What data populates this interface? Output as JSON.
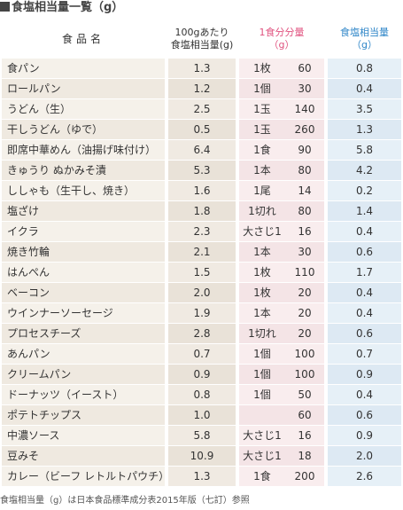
{
  "title": "食塩相当量一覧（g）",
  "headers": {
    "name": "食品名",
    "per100_line1": "100gあたり",
    "per100_line2": "食塩相当量(g)",
    "portion_line1": "1食分分量",
    "portion_line2": "（g）",
    "salt_line1": "食塩相当量",
    "salt_line2": "（g）"
  },
  "colors": {
    "portion_header": "#e0527f",
    "salt_header": "#2f86c8",
    "name_column": "#f5f1ea",
    "portion_column": "#f9edee",
    "salt_column": "#e6f0f7"
  },
  "rows": [
    {
      "name": "食パン",
      "per100": "1.3",
      "unit": "1枚",
      "grams": "60",
      "salt": "0.8"
    },
    {
      "name": "ロールパン",
      "per100": "1.2",
      "unit": "1個",
      "grams": "30",
      "salt": "0.4"
    },
    {
      "name": "うどん（生）",
      "per100": "2.5",
      "unit": "1玉",
      "grams": "140",
      "salt": "3.5"
    },
    {
      "name": "干しうどん（ゆで）",
      "per100": "0.5",
      "unit": "1玉",
      "grams": "260",
      "salt": "1.3"
    },
    {
      "name": "即席中華めん（油揚げ味付け）",
      "per100": "6.4",
      "unit": "1食",
      "grams": "90",
      "salt": "5.8"
    },
    {
      "name": "きゅうり ぬかみそ漬",
      "per100": "5.3",
      "unit": "1本",
      "grams": "80",
      "salt": "4.2"
    },
    {
      "name": "ししゃも（生干し、焼き）",
      "per100": "1.6",
      "unit": "1尾",
      "grams": "14",
      "salt": "0.2"
    },
    {
      "name": "塩ざけ",
      "per100": "1.8",
      "unit": "1切れ",
      "grams": "80",
      "salt": "1.4"
    },
    {
      "name": "イクラ",
      "per100": "2.3",
      "unit": "大さじ1",
      "grams": "16",
      "salt": "0.4"
    },
    {
      "name": "焼き竹輪",
      "per100": "2.1",
      "unit": "1本",
      "grams": "30",
      "salt": "0.6"
    },
    {
      "name": "はんぺん",
      "per100": "1.5",
      "unit": "1枚",
      "grams": "110",
      "salt": "1.7"
    },
    {
      "name": "ベーコン",
      "per100": "2.0",
      "unit": "1枚",
      "grams": "20",
      "salt": "0.4"
    },
    {
      "name": "ウインナーソーセージ",
      "per100": "1.9",
      "unit": "1本",
      "grams": "20",
      "salt": "0.4"
    },
    {
      "name": "プロセスチーズ",
      "per100": "2.8",
      "unit": "1切れ",
      "grams": "20",
      "salt": "0.6"
    },
    {
      "name": "あんパン",
      "per100": "0.7",
      "unit": "1個",
      "grams": "100",
      "salt": "0.7"
    },
    {
      "name": "クリームパン",
      "per100": "0.9",
      "unit": "1個",
      "grams": "100",
      "salt": "0.9"
    },
    {
      "name": "ドーナッツ（イースト）",
      "per100": "0.8",
      "unit": "1個",
      "grams": "50",
      "salt": "0.4"
    },
    {
      "name": "ポテトチップス",
      "per100": "1.0",
      "unit": "",
      "grams": "60",
      "salt": "0.6"
    },
    {
      "name": "中濃ソース",
      "per100": "5.8",
      "unit": "大さじ1",
      "grams": "16",
      "salt": "0.9"
    },
    {
      "name": "豆みそ",
      "per100": "10.9",
      "unit": "大さじ1",
      "grams": "18",
      "salt": "2.0"
    },
    {
      "name": "カレー（ビーフ レトルトパウチ）",
      "per100": "1.3",
      "unit": "1食",
      "grams": "200",
      "salt": "2.6"
    }
  ],
  "footnote": "食塩相当量（g）は日本食品標準成分表2015年版（七訂）参照"
}
